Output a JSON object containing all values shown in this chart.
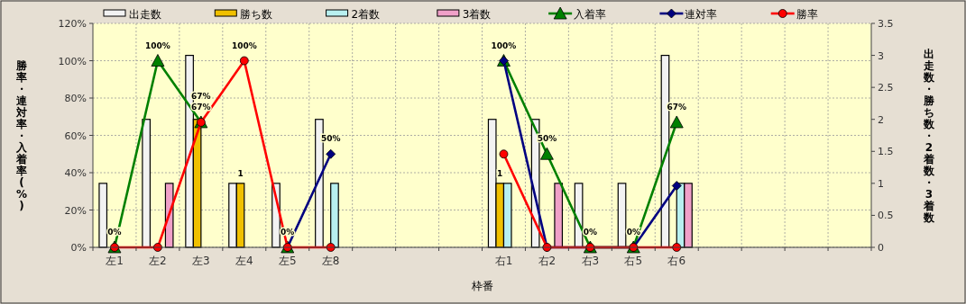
{
  "chart_data": {
    "type": "bar",
    "xlabel": "枠番",
    "ylabel": "勝率・連対率・入着率(%)",
    "y2label": "出走数・勝ち数・2着数・3着数",
    "categories": [
      "左1",
      "左2",
      "左3",
      "左4",
      "左5",
      "左8",
      null,
      null,
      null,
      "右1",
      "右2",
      "右3",
      "右5",
      "右6",
      null,
      null,
      null,
      null
    ],
    "series": [
      {
        "name": "出走数",
        "axis": "y2",
        "color": "#f2f2f2",
        "values": [
          1,
          2,
          3,
          1,
          1,
          2,
          null,
          null,
          null,
          2,
          2,
          1,
          1,
          3,
          null,
          null,
          null,
          null
        ]
      },
      {
        "name": "勝ち数",
        "axis": "y2",
        "color": "#f0c000",
        "values": [
          0,
          0,
          2,
          1,
          0,
          0,
          null,
          null,
          null,
          1,
          0,
          0,
          0,
          0,
          null,
          null,
          null,
          null
        ],
        "value_labels": [
          null,
          null,
          null,
          "1",
          null,
          null,
          null,
          null,
          null,
          "1",
          null,
          null,
          null,
          null,
          null,
          null,
          null,
          null
        ]
      },
      {
        "name": "2着数",
        "axis": "y2",
        "color": "#b8f0f0",
        "values": [
          0,
          0,
          0,
          0,
          0,
          1,
          null,
          null,
          null,
          1,
          0,
          0,
          0,
          1,
          null,
          null,
          null,
          null
        ]
      },
      {
        "name": "3着数",
        "axis": "y2",
        "color": "#f0a0c8",
        "values": [
          0,
          1,
          0,
          0,
          0,
          0,
          null,
          null,
          null,
          0,
          1,
          0,
          0,
          1,
          null,
          null,
          null,
          null
        ]
      },
      {
        "name": "入着率",
        "type": "line",
        "marker": "triangle",
        "color": "#008000",
        "values": [
          0,
          100,
          67,
          null,
          0,
          null,
          null,
          null,
          null,
          100,
          50,
          0,
          0,
          67,
          null,
          null,
          null,
          null
        ],
        "value_labels": [
          "0%",
          "100%",
          "67%",
          null,
          "0%",
          null,
          null,
          null,
          null,
          null,
          "50%",
          "0%",
          "0%",
          "67%",
          null,
          null,
          null,
          null
        ]
      },
      {
        "name": "連対率",
        "type": "line",
        "marker": "diamond",
        "color": "#000080",
        "values": [
          null,
          null,
          null,
          null,
          0,
          50,
          null,
          null,
          null,
          100,
          0,
          0,
          0,
          33,
          null,
          null,
          null,
          null
        ],
        "value_labels": [
          null,
          null,
          null,
          null,
          null,
          "50%",
          null,
          null,
          null,
          "100%",
          null,
          null,
          null,
          null,
          null,
          null,
          null,
          null
        ]
      },
      {
        "name": "勝率",
        "type": "line",
        "marker": "circle",
        "color": "#ff0000",
        "values": [
          0,
          0,
          67,
          100,
          0,
          0,
          null,
          null,
          null,
          50,
          0,
          0,
          0,
          0,
          null,
          null,
          null,
          null
        ],
        "value_labels": [
          null,
          null,
          "67%",
          "100%",
          null,
          null,
          null,
          null,
          null,
          null,
          null,
          null,
          null,
          null,
          null,
          null,
          null,
          null
        ]
      }
    ],
    "ylim": [
      0,
      120
    ],
    "yticks": [
      {
        "value": 0,
        "label": "0%"
      },
      {
        "value": 20,
        "label": "20%"
      },
      {
        "value": 40,
        "label": "40%"
      },
      {
        "value": 60,
        "label": "60%"
      },
      {
        "value": 80,
        "label": "80%"
      },
      {
        "value": 100,
        "label": "100%"
      },
      {
        "value": 120,
        "label": "120%"
      }
    ],
    "y2lim": [
      0,
      3.5
    ],
    "y2ticks": [
      0,
      0.5,
      1,
      1.5,
      2,
      2.5,
      3,
      3.5
    ],
    "grid": true,
    "legend": "top"
  }
}
